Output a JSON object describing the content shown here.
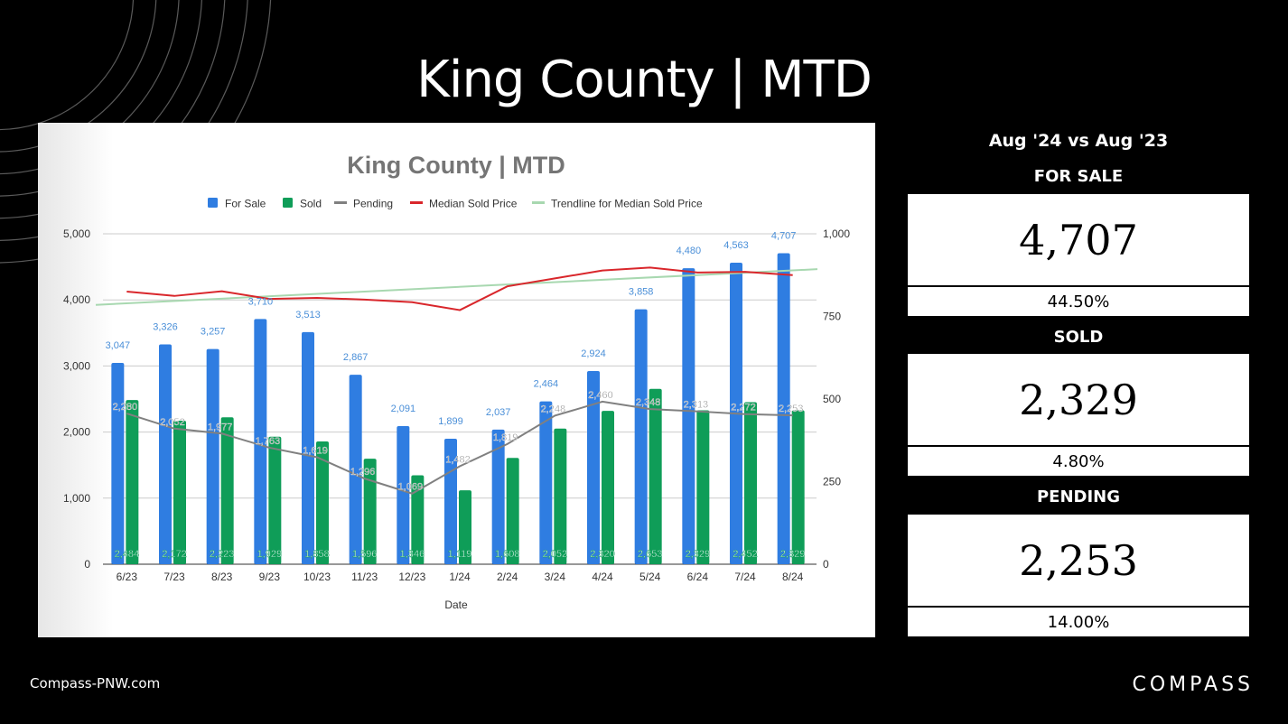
{
  "slide": {
    "title": "King County | MTD",
    "footer_site": "Compass-PNW.com",
    "brand": "COMPASS"
  },
  "comparison": {
    "heading": "Aug '24 vs Aug '23",
    "stats": [
      {
        "label": "FOR SALE",
        "value": "4,707",
        "change": "44.50%"
      },
      {
        "label": "SOLD",
        "value": "2,329",
        "change": "4.80%"
      },
      {
        "label": "PENDING",
        "value": "2,253",
        "change": "14.00%"
      }
    ]
  },
  "colors": {
    "for_sale": "#2f7de1",
    "sold": "#0f9d58",
    "pending": "#808080",
    "median": "#d9262b",
    "trend": "#a8d8b0",
    "for_sale_label": "#4a8fd8"
  },
  "chart_data": {
    "type": "bar",
    "title": "King County | MTD",
    "xlabel": "Date",
    "ylabel": "",
    "y2label": "",
    "ylim": [
      0,
      5000
    ],
    "y2lim": [
      0,
      1000
    ],
    "yticks": [
      "0",
      "1,000",
      "2,000",
      "3,000",
      "4,000",
      "5,000"
    ],
    "y2ticks": [
      "0",
      "250",
      "500",
      "750",
      "1,000"
    ],
    "grid": true,
    "legend_position": "top",
    "categories": [
      "6/23",
      "7/23",
      "8/23",
      "9/23",
      "10/23",
      "11/23",
      "12/23",
      "1/24",
      "2/24",
      "3/24",
      "4/24",
      "5/24",
      "6/24",
      "7/24",
      "8/24"
    ],
    "series": [
      {
        "name": "For Sale",
        "kind": "bar",
        "axis": "left",
        "values": [
          3047,
          3326,
          3257,
          3710,
          3513,
          2867,
          2091,
          1899,
          2037,
          2464,
          2924,
          3858,
          4480,
          4563,
          4707
        ],
        "labels": [
          "3,047",
          "3,326",
          "3,257",
          "3,710",
          "3,513",
          "2,867",
          "2,091",
          "1,899",
          "2,037",
          "2,464",
          "2,924",
          "3,858",
          "4,480",
          "4,563",
          "4,707"
        ]
      },
      {
        "name": "Sold",
        "kind": "bar",
        "axis": "left",
        "values": [
          2484,
          2172,
          2223,
          1929,
          1858,
          1596,
          1346,
          1119,
          1608,
          2052,
          2320,
          2653,
          2329,
          2452,
          2329
        ],
        "labels": [
          "2,484",
          "2,172",
          "2,223",
          "1,929",
          "1,858",
          "1,596",
          "1,346",
          "1,119",
          "1,608",
          "2,052",
          "2,320",
          "2,653",
          "2,329",
          "2,452",
          "2,329"
        ]
      },
      {
        "name": "Pending",
        "kind": "line",
        "axis": "left",
        "values": [
          2280,
          2052,
          1977,
          1763,
          1619,
          1296,
          1069,
          1482,
          1819,
          2248,
          2460,
          2348,
          2313,
          2272,
          2253
        ],
        "labels": [
          "2,280",
          "2,052",
          "1,977",
          "1,763",
          "1,619",
          "1,296",
          "1,069",
          "1,482",
          "1,819",
          "2,248",
          "2,460",
          "2,348",
          "2,313",
          "2,272",
          "2,253"
        ]
      },
      {
        "name": "Median Sold Price",
        "kind": "line",
        "axis": "right",
        "values": [
          825,
          812,
          826,
          803,
          806,
          801,
          793,
          769,
          841,
          865,
          889,
          898,
          883,
          885,
          875
        ]
      },
      {
        "name": "Trendline for Median Sold Price",
        "kind": "trendline",
        "axis": "right",
        "start": 785,
        "end": 893
      }
    ]
  }
}
